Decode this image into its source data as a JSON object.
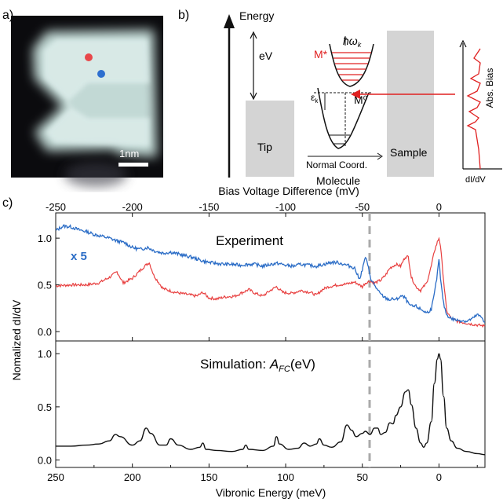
{
  "panel_labels": {
    "a": "a)",
    "b": "b)",
    "c": "c)"
  },
  "panel_a": {
    "scalebar_label": "1nm",
    "marker_colors": [
      "#e8474a",
      "#2d6fcf"
    ]
  },
  "panel_b": {
    "energy_label": "Energy",
    "ev_label": "eV",
    "tip_label": "Tip",
    "sample_label": "Sample",
    "molecule_label": "Molecule",
    "normal_coord_label": "Normal Coord.",
    "m_star_label": "M*",
    "m_zero_label": "M⁰",
    "hbar_omega_label": "ħω",
    "hbar_omega_sub": "k",
    "epsilon_label": "ε",
    "epsilon_sub": "k",
    "abs_bias_label": "Abs. Bias",
    "didv_label": "dI/dV",
    "colors": {
      "red": "#e02020",
      "gray": "#d4d4d4"
    }
  },
  "panel_c": {
    "top_axis_label": "Bias Voltage Difference (mV)",
    "bottom_axis_label": "Vibronic Energy (meV)",
    "ylabel": "Nomalized dI/dV",
    "experiment_title": "Experiment",
    "scale_label": "x 5",
    "sim_title_prefix": "Simulation: ",
    "sim_title_symbol": "A",
    "sim_title_sub": "FC",
    "sim_title_suffix": "(eV)",
    "top_ticks": [
      "-250",
      "-200",
      "-150",
      "-100",
      "-50",
      "0"
    ],
    "bottom_ticks": [
      "250",
      "200",
      "150",
      "100",
      "50",
      "0"
    ],
    "exp_yticks": [
      "1.0",
      "0.5",
      "0.0"
    ],
    "sim_yticks": [
      "1.0",
      "0.5",
      "0.0"
    ]
  },
  "chart_data": [
    {
      "type": "line",
      "title": "Experiment",
      "xlabel": "Vibronic Energy (meV)",
      "top_xlabel": "Bias Voltage Difference (mV)",
      "ylabel": "Nomalized dI/dV",
      "xlim": [
        250,
        -30
      ],
      "ylim": [
        -0.1,
        1.27
      ],
      "series": [
        {
          "color": "#e84040",
          "x": [
            250,
            240,
            230,
            222,
            215,
            210,
            206,
            200,
            192,
            189,
            186,
            180,
            172,
            165,
            158,
            154,
            150,
            145,
            140,
            133,
            128,
            124,
            120,
            115,
            110,
            106,
            102,
            96,
            90,
            84,
            80,
            76,
            72,
            66,
            60,
            55,
            52,
            50,
            48,
            45,
            42,
            38,
            35,
            32,
            28,
            25,
            22,
            20,
            18,
            15,
            12,
            8,
            5,
            3,
            1,
            0,
            -1,
            -3,
            -5,
            -8,
            -12,
            -18,
            -25,
            -30
          ],
          "y": [
            0.49,
            0.5,
            0.5,
            0.52,
            0.58,
            0.64,
            0.52,
            0.57,
            0.7,
            0.74,
            0.6,
            0.46,
            0.42,
            0.4,
            0.38,
            0.42,
            0.36,
            0.35,
            0.37,
            0.38,
            0.42,
            0.45,
            0.41,
            0.38,
            0.44,
            0.48,
            0.42,
            0.41,
            0.44,
            0.42,
            0.39,
            0.45,
            0.48,
            0.5,
            0.51,
            0.53,
            0.5,
            0.48,
            0.52,
            0.54,
            0.52,
            0.55,
            0.6,
            0.68,
            0.72,
            0.7,
            0.8,
            0.8,
            0.58,
            0.48,
            0.44,
            0.52,
            0.7,
            0.86,
            0.96,
            1.0,
            0.92,
            0.55,
            0.22,
            0.14,
            0.11,
            0.09,
            0.07,
            0.06
          ]
        },
        {
          "name": "x 5",
          "color": "#2a6cc6",
          "x": [
            250,
            245,
            240,
            235,
            230,
            225,
            220,
            215,
            210,
            205,
            200,
            195,
            190,
            185,
            180,
            175,
            170,
            165,
            160,
            155,
            150,
            145,
            140,
            135,
            130,
            125,
            120,
            115,
            110,
            105,
            100,
            95,
            90,
            85,
            80,
            75,
            70,
            66,
            62,
            58,
            55,
            52,
            50,
            48,
            46,
            44,
            42,
            40,
            38,
            35,
            32,
            30,
            28,
            25,
            22,
            20,
            18,
            15,
            12,
            10,
            8,
            5,
            3,
            1,
            0,
            -1,
            -3,
            -5,
            -8,
            -12,
            -15,
            -18,
            -22,
            -25,
            -28,
            -30
          ],
          "y": [
            1.08,
            1.13,
            1.12,
            1.09,
            1.07,
            1.04,
            1.02,
            1.0,
            0.97,
            0.95,
            0.9,
            0.88,
            0.9,
            0.86,
            0.84,
            0.85,
            0.83,
            0.81,
            0.79,
            0.76,
            0.74,
            0.73,
            0.72,
            0.72,
            0.71,
            0.72,
            0.72,
            0.7,
            0.72,
            0.73,
            0.71,
            0.7,
            0.72,
            0.71,
            0.7,
            0.72,
            0.74,
            0.74,
            0.72,
            0.7,
            0.68,
            0.56,
            0.66,
            0.8,
            0.68,
            0.54,
            0.5,
            0.44,
            0.4,
            0.36,
            0.34,
            0.35,
            0.34,
            0.38,
            0.36,
            0.3,
            0.27,
            0.27,
            0.24,
            0.22,
            0.2,
            0.24,
            0.4,
            0.62,
            0.78,
            0.56,
            0.3,
            0.18,
            0.14,
            0.12,
            0.12,
            0.11,
            0.14,
            0.18,
            0.15,
            0.1
          ]
        }
      ]
    },
    {
      "type": "line",
      "title": "Simulation: AFC(eV)",
      "xlabel": "Vibronic Energy (meV)",
      "ylabel": "Nomalized dI/dV",
      "xlim": [
        250,
        -30
      ],
      "ylim": [
        -0.07,
        1.12
      ],
      "series": [
        {
          "color": "#111111",
          "x": [
            250,
            240,
            230,
            222,
            215,
            211,
            208,
            200,
            195,
            191,
            188,
            182,
            178,
            175,
            170,
            162,
            156,
            154,
            152,
            145,
            135,
            128,
            126,
            124,
            115,
            108,
            106,
            104,
            98,
            92,
            88,
            84,
            80,
            78,
            75,
            70,
            64,
            60,
            57,
            54,
            50,
            48,
            45,
            42,
            40,
            38,
            35,
            32,
            30,
            28,
            25,
            22,
            20,
            18,
            15,
            12,
            10,
            8,
            5,
            3,
            1,
            0,
            -1,
            -3,
            -5,
            -8,
            -12,
            -18,
            -25,
            -30
          ],
          "y": [
            0.13,
            0.13,
            0.14,
            0.15,
            0.18,
            0.24,
            0.22,
            0.14,
            0.18,
            0.3,
            0.25,
            0.14,
            0.14,
            0.2,
            0.14,
            0.1,
            0.12,
            0.16,
            0.1,
            0.09,
            0.08,
            0.1,
            0.14,
            0.1,
            0.09,
            0.13,
            0.22,
            0.15,
            0.1,
            0.11,
            0.16,
            0.13,
            0.15,
            0.2,
            0.14,
            0.12,
            0.17,
            0.33,
            0.28,
            0.22,
            0.25,
            0.27,
            0.24,
            0.3,
            0.3,
            0.24,
            0.26,
            0.35,
            0.34,
            0.42,
            0.5,
            0.64,
            0.66,
            0.52,
            0.3,
            0.16,
            0.12,
            0.16,
            0.36,
            0.72,
            0.95,
            1.0,
            0.95,
            0.6,
            0.3,
            0.18,
            0.11,
            0.08,
            0.06,
            0.05
          ]
        }
      ]
    }
  ]
}
